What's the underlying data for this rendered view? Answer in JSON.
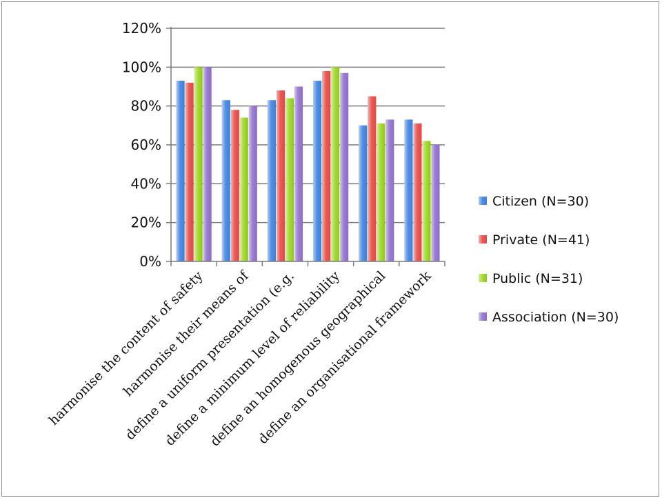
{
  "chart_data": {
    "type": "bar",
    "categories": [
      "harmonise the content of safety",
      "harmonise their means of",
      "define a uniform presentation (e.g.",
      "define a minimum level of reliability",
      "define an homogenous geographical",
      "define an organisational framework"
    ],
    "series": [
      {
        "name": "Citizen (N=30)",
        "color": "#4f8fe8",
        "values": [
          93,
          83,
          83,
          93,
          70,
          73
        ]
      },
      {
        "name": "Private (N=41)",
        "color": "#ef5a55",
        "values": [
          92,
          78,
          88,
          98,
          85,
          71
        ]
      },
      {
        "name": "Public (N=31)",
        "color": "#a6dd33",
        "values": [
          100,
          74,
          84,
          100,
          71,
          62
        ]
      },
      {
        "name": "Association (N=30)",
        "color": "#9c7ed6",
        "values": [
          100,
          80,
          90,
          97,
          73,
          60
        ]
      }
    ],
    "ylim": [
      0,
      120
    ],
    "yticks": [
      "0%",
      "20%",
      "40%",
      "60%",
      "80%",
      "100%",
      "120%"
    ],
    "grid": true,
    "legend_position": "right"
  }
}
